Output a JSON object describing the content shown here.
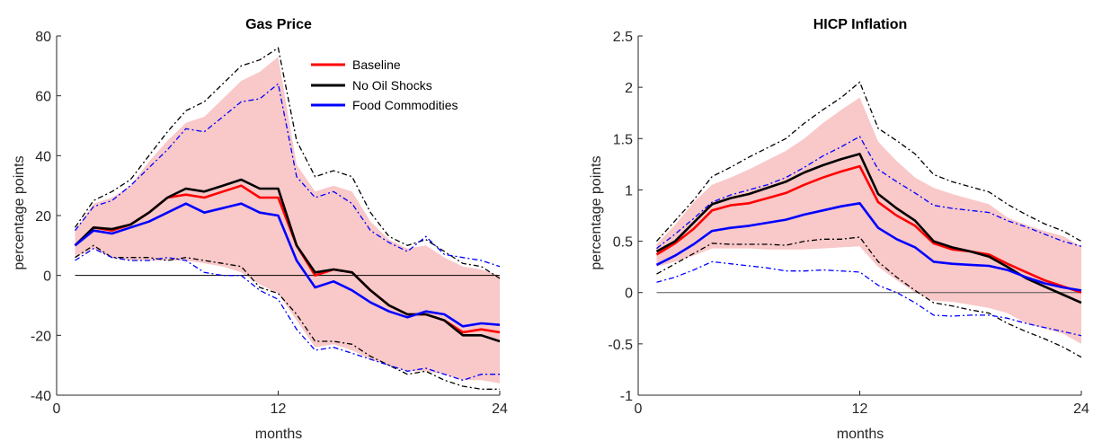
{
  "colors": {
    "baseline": "#ff0000",
    "no_oil": "#000000",
    "food": "#0000ff",
    "band": "#f9c8c8"
  },
  "legend": [
    {
      "name": "Baseline",
      "color": "#ff0000"
    },
    {
      "name": "No Oil Shocks",
      "color": "#000000"
    },
    {
      "name": "Food Commodities",
      "color": "#0000ff"
    }
  ],
  "chart_data": [
    {
      "type": "line",
      "title": "Gas Price",
      "xlabel": "months",
      "ylabel": "percentage points",
      "xlim": [
        0,
        24
      ],
      "ylim": [
        -40,
        80
      ],
      "xticks": [
        0,
        12,
        24
      ],
      "yticks": [
        -40,
        -20,
        0,
        20,
        40,
        60,
        80
      ],
      "x": [
        1,
        2,
        3,
        4,
        5,
        6,
        7,
        8,
        9,
        10,
        11,
        12,
        13,
        14,
        15,
        16,
        17,
        18,
        19,
        20,
        21,
        22,
        23,
        24
      ],
      "zero_line": true,
      "legend": "top-right",
      "series": [
        {
          "name": "Baseline",
          "values": [
            10,
            16,
            15,
            17,
            21,
            26,
            27,
            26,
            28,
            30,
            26,
            26,
            10,
            0,
            2,
            1,
            -5,
            -10,
            -13,
            -13,
            -15,
            -19,
            -18,
            -19
          ],
          "color": "#ff0000"
        },
        {
          "name": "No Oil Shocks",
          "values": [
            10,
            16,
            15.5,
            17,
            21,
            26,
            29,
            28,
            30,
            32,
            29,
            29,
            10,
            1,
            2,
            1,
            -5,
            -10,
            -13,
            -13,
            -15,
            -20,
            -20,
            -22
          ],
          "color": "#000000"
        },
        {
          "name": "Food Commodities",
          "values": [
            10,
            15,
            14,
            16,
            18,
            21,
            24,
            21,
            22.5,
            24,
            21,
            20,
            5,
            -4,
            -2,
            -5,
            -9,
            -12,
            -14,
            -12,
            -13,
            -17,
            -16,
            -16.5
          ],
          "color": "#0000ff"
        }
      ],
      "band": {
        "upper": [
          15,
          24,
          26,
          30,
          38,
          45,
          51,
          53,
          59,
          65,
          68,
          73,
          37,
          28,
          30,
          28,
          18,
          12,
          9,
          10,
          6,
          3,
          2,
          0
        ],
        "lower": [
          6,
          9,
          6,
          5,
          5,
          5,
          5,
          4,
          3,
          1,
          -3,
          -6,
          -15,
          -24,
          -23,
          -25,
          -28,
          -30,
          -32,
          -32,
          -33,
          -35,
          -35,
          -36
        ]
      },
      "bounds": [
        {
          "name": "No Oil Shocks upper",
          "color": "#000000",
          "values": [
            16,
            25,
            28,
            32,
            40,
            48,
            55,
            58,
            64,
            70,
            72,
            76,
            45,
            33,
            35,
            33,
            21,
            13,
            10,
            12,
            8,
            4,
            3,
            -1
          ]
        },
        {
          "name": "No Oil Shocks lower",
          "color": "#000000",
          "values": [
            6,
            10,
            6,
            6,
            6,
            5,
            6,
            5,
            4,
            3,
            -4,
            -6,
            -13,
            -22,
            -22,
            -23,
            -27,
            -30,
            -33,
            -32,
            -35,
            -37,
            -38,
            -38
          ]
        },
        {
          "name": "Food Commodities upper",
          "color": "#0000ff",
          "values": [
            15,
            23,
            25,
            30,
            36,
            42,
            49,
            48,
            53,
            58,
            59,
            64,
            33,
            26,
            28,
            24,
            15,
            11,
            8,
            13,
            7,
            6,
            5,
            3
          ]
        },
        {
          "name": "Food Commodities lower",
          "color": "#0000ff",
          "values": [
            5,
            9,
            6,
            5,
            5,
            6,
            5,
            1,
            0,
            0,
            -5,
            -8,
            -18,
            -25,
            -24,
            -26,
            -28,
            -30,
            -32,
            -31,
            -33,
            -35,
            -33,
            -33
          ]
        }
      ]
    },
    {
      "type": "line",
      "title": "HICP Inflation",
      "xlabel": "months",
      "ylabel": "percentage points",
      "xlim": [
        0,
        24
      ],
      "ylim": [
        -1,
        2.5
      ],
      "xticks": [
        0,
        12,
        24
      ],
      "yticks": [
        -1,
        -0.5,
        0,
        0.5,
        1,
        1.5,
        2,
        2.5
      ],
      "x": [
        1,
        2,
        3,
        4,
        5,
        6,
        7,
        8,
        9,
        10,
        11,
        12,
        13,
        14,
        15,
        16,
        17,
        18,
        19,
        20,
        21,
        22,
        23,
        24
      ],
      "zero_line": true,
      "series": [
        {
          "name": "Baseline",
          "values": [
            0.37,
            0.48,
            0.62,
            0.8,
            0.85,
            0.87,
            0.92,
            0.97,
            1.05,
            1.12,
            1.18,
            1.23,
            0.88,
            0.75,
            0.65,
            0.48,
            0.42,
            0.4,
            0.37,
            0.28,
            0.2,
            0.12,
            0.06,
            0.0
          ],
          "color": "#ff0000"
        },
        {
          "name": "No Oil Shocks",
          "values": [
            0.4,
            0.5,
            0.68,
            0.86,
            0.92,
            0.96,
            1.02,
            1.08,
            1.17,
            1.24,
            1.3,
            1.35,
            0.96,
            0.82,
            0.7,
            0.5,
            0.44,
            0.4,
            0.35,
            0.25,
            0.14,
            0.06,
            -0.02,
            -0.1
          ],
          "color": "#000000"
        },
        {
          "name": "Food Commodities",
          "values": [
            0.27,
            0.36,
            0.47,
            0.6,
            0.63,
            0.65,
            0.68,
            0.71,
            0.76,
            0.8,
            0.84,
            0.87,
            0.63,
            0.52,
            0.44,
            0.3,
            0.28,
            0.27,
            0.26,
            0.22,
            0.15,
            0.09,
            0.05,
            0.02
          ],
          "color": "#0000ff"
        }
      ],
      "band": {
        "upper": [
          0.47,
          0.66,
          0.88,
          1.05,
          1.12,
          1.2,
          1.29,
          1.38,
          1.5,
          1.65,
          1.78,
          1.9,
          1.47,
          1.28,
          1.12,
          1.02,
          0.96,
          0.91,
          0.86,
          0.73,
          0.66,
          0.6,
          0.55,
          0.45
        ],
        "lower": [
          0.25,
          0.3,
          0.36,
          0.43,
          0.43,
          0.43,
          0.42,
          0.42,
          0.42,
          0.43,
          0.44,
          0.45,
          0.25,
          0.12,
          0.0,
          -0.08,
          -0.09,
          -0.12,
          -0.15,
          -0.2,
          -0.3,
          -0.35,
          -0.4,
          -0.5
        ]
      },
      "bounds": [
        {
          "name": "No Oil Shocks upper",
          "color": "#000000",
          "values": [
            0.5,
            0.7,
            0.9,
            1.13,
            1.22,
            1.32,
            1.41,
            1.5,
            1.65,
            1.78,
            1.9,
            2.05,
            1.6,
            1.48,
            1.35,
            1.15,
            1.08,
            1.03,
            0.98,
            0.86,
            0.76,
            0.67,
            0.6,
            0.5
          ]
        },
        {
          "name": "No Oil Shocks lower",
          "color": "#000000",
          "values": [
            0.18,
            0.28,
            0.38,
            0.48,
            0.47,
            0.47,
            0.47,
            0.46,
            0.5,
            0.52,
            0.52,
            0.54,
            0.3,
            0.15,
            0.02,
            -0.1,
            -0.13,
            -0.17,
            -0.2,
            -0.3,
            -0.38,
            -0.45,
            -0.53,
            -0.63
          ]
        },
        {
          "name": "Food Commodities upper",
          "color": "#0000ff",
          "values": [
            0.43,
            0.57,
            0.72,
            0.88,
            0.95,
            1.0,
            1.05,
            1.12,
            1.22,
            1.33,
            1.42,
            1.52,
            1.2,
            1.08,
            0.97,
            0.85,
            0.82,
            0.8,
            0.78,
            0.7,
            0.64,
            0.57,
            0.5,
            0.45
          ]
        },
        {
          "name": "Food Commodities lower",
          "color": "#0000ff",
          "values": [
            0.1,
            0.15,
            0.22,
            0.3,
            0.28,
            0.26,
            0.24,
            0.21,
            0.21,
            0.22,
            0.21,
            0.2,
            0.07,
            0.0,
            -0.1,
            -0.22,
            -0.23,
            -0.22,
            -0.22,
            -0.25,
            -0.3,
            -0.34,
            -0.38,
            -0.42
          ]
        }
      ]
    }
  ]
}
